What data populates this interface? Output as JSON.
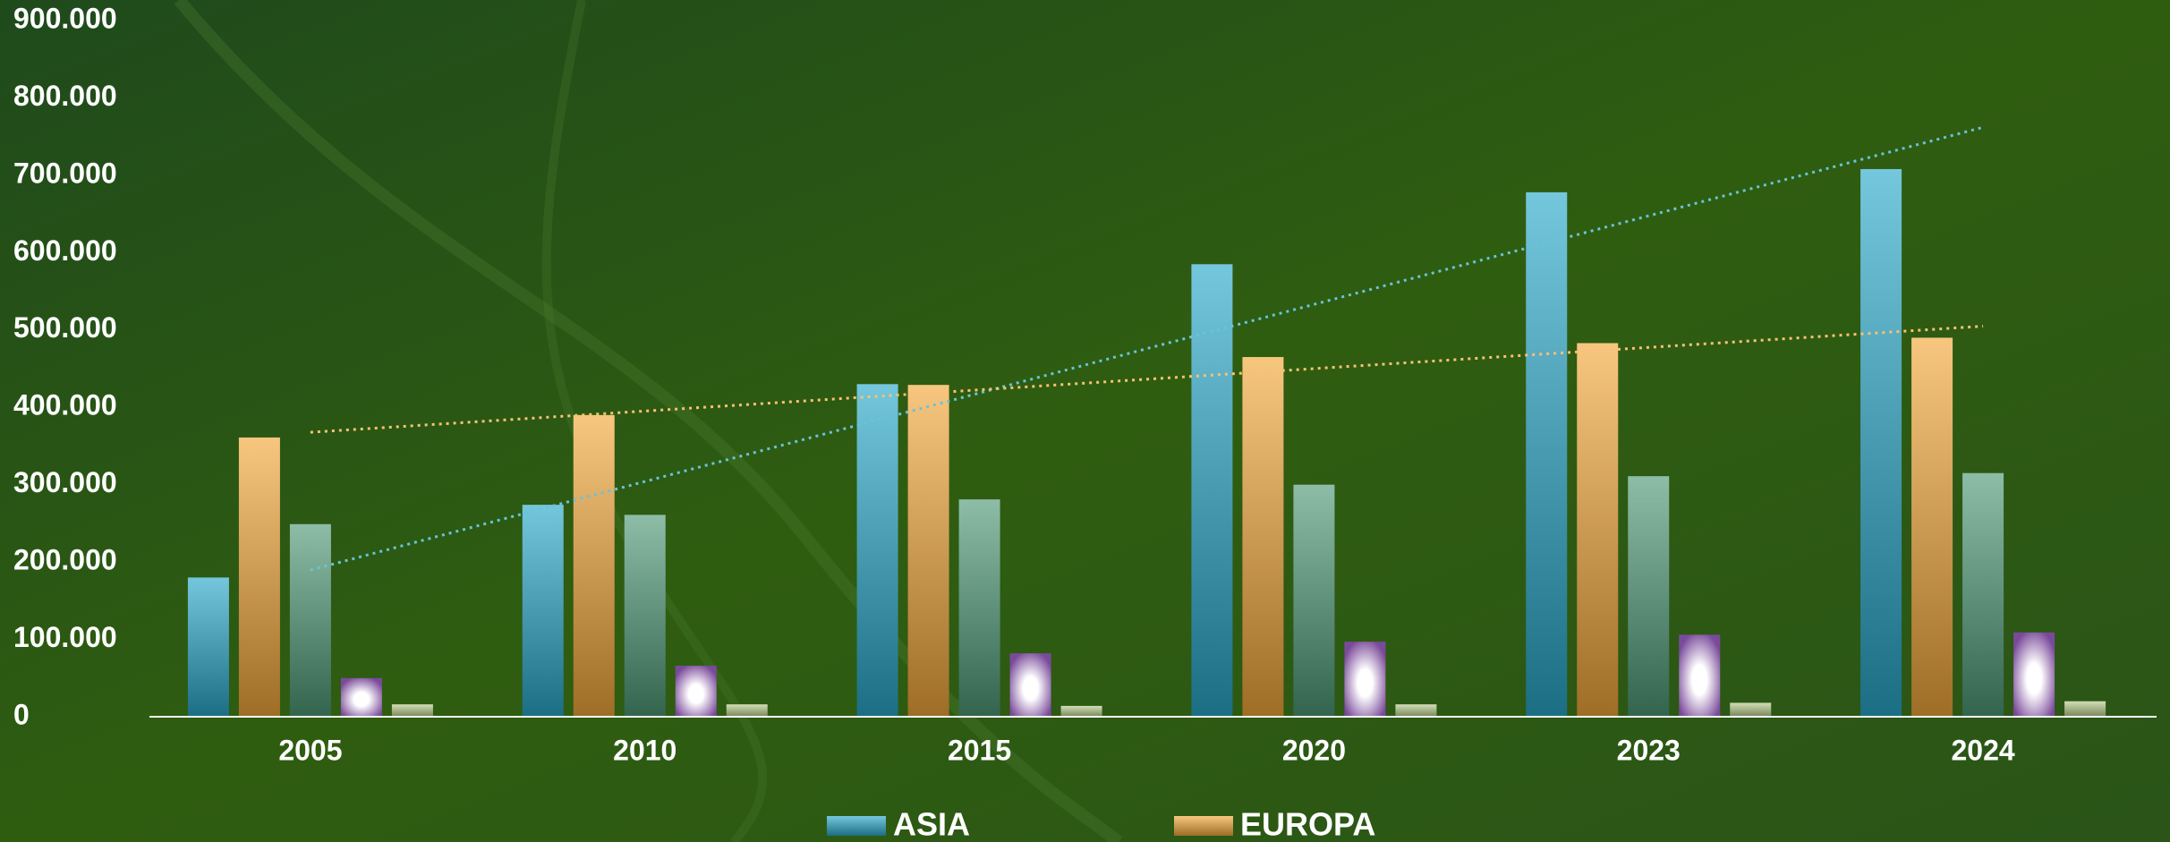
{
  "chart_data": {
    "type": "bar",
    "categories": [
      "2005",
      "2010",
      "2015",
      "2020",
      "2023",
      "2024"
    ],
    "series": [
      {
        "name": "ASIA",
        "color": "#29a9c9",
        "trendline": true,
        "values": [
          180000,
          274000,
          430000,
          585000,
          678000,
          708000
        ]
      },
      {
        "color": "#f3a83a",
        "values": [
          361000,
          390000,
          429000,
          465000,
          483000,
          490000
        ],
        "name": "EUROPA",
        "trendline": true
      },
      {
        "color": "#4f9a78",
        "values": [
          249000,
          261000,
          281000,
          300000,
          311000,
          315000
        ]
      },
      {
        "color": "#7a4a9a",
        "values": [
          50000,
          66000,
          82000,
          97000,
          106000,
          109000
        ]
      },
      {
        "color": "#b9cc8c",
        "values": [
          16000,
          16000,
          14000,
          16000,
          18000,
          20000
        ]
      }
    ],
    "ylim": [
      0,
      900000
    ],
    "yticks": [
      0,
      {
        "value": 100000,
        "label": "100.000"
      },
      {
        "value": 200000,
        "label": "200.000"
      },
      {
        "value": 300000,
        "label": "300.000"
      },
      {
        "value": 400000,
        "label": "400.000"
      },
      {
        "value": 500000,
        "label": "500.000"
      },
      {
        "value": 600000,
        "label": "600.000"
      },
      {
        "value": 700000,
        "label": "700.000"
      },
      {
        "value": 800000,
        "label": "800.000"
      },
      {
        "value": 900000,
        "label": "900.000"
      }
    ],
    "grid": false,
    "legend": "bottom"
  }
}
